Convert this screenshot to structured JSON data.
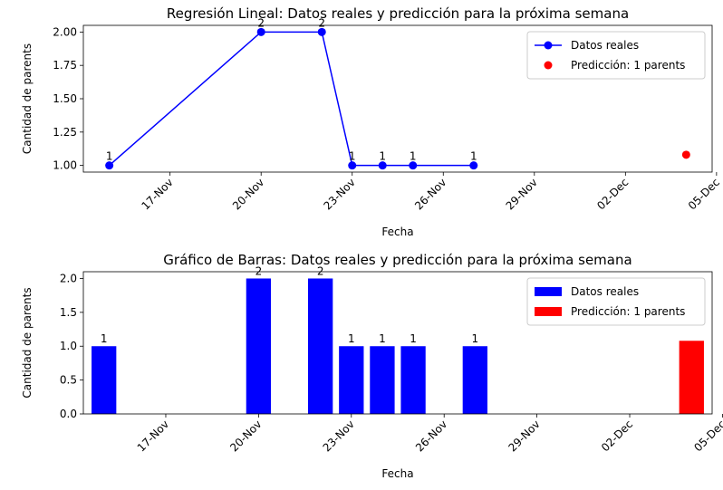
{
  "chart_data": [
    {
      "type": "line",
      "title": "Regresión Lineal: Datos reales y predicción para la próxima semana",
      "xlabel": "Fecha",
      "ylabel": "Cantidad de parents",
      "ylim": [
        0.95,
        2.05
      ],
      "yticks": [
        "1.00",
        "1.25",
        "1.50",
        "1.75",
        "2.00"
      ],
      "xticks": [
        "17-Nov",
        "20-Nov",
        "23-Nov",
        "26-Nov",
        "29-Nov",
        "02-Dec",
        "05-Dec"
      ],
      "legend_position": "top-right",
      "series": [
        {
          "name": "Datos reales",
          "color": "#0000ff",
          "marker": "circle",
          "points": [
            {
              "x": "2024-11-15",
              "y": 1,
              "label": "1"
            },
            {
              "x": "2024-11-20",
              "y": 2,
              "label": "2"
            },
            {
              "x": "2024-11-22",
              "y": 2,
              "label": "2"
            },
            {
              "x": "2024-11-23",
              "y": 1,
              "label": "1"
            },
            {
              "x": "2024-11-24",
              "y": 1,
              "label": "1"
            },
            {
              "x": "2024-11-25",
              "y": 1,
              "label": "1"
            },
            {
              "x": "2024-11-27",
              "y": 1,
              "label": "1"
            }
          ]
        },
        {
          "name": "Predicción: 1 parents",
          "color": "#ff0000",
          "marker": "circle",
          "points": [
            {
              "x": "2024-12-04",
              "y": 1.08
            }
          ]
        }
      ]
    },
    {
      "type": "bar",
      "title": "Gráfico de Barras: Datos reales y predicción para la próxima semana",
      "xlabel": "Fecha",
      "ylabel": "Cantidad de parents",
      "ylim": [
        0,
        2.1
      ],
      "yticks": [
        "0.0",
        "0.5",
        "1.0",
        "1.5",
        "2.0"
      ],
      "xticks": [
        "17-Nov",
        "20-Nov",
        "23-Nov",
        "26-Nov",
        "29-Nov",
        "02-Dec",
        "05-Dec"
      ],
      "legend_position": "top-right",
      "series": [
        {
          "name": "Datos reales",
          "color": "#0000ff",
          "points": [
            {
              "x": "2024-11-15",
              "y": 1,
              "label": "1"
            },
            {
              "x": "2024-11-20",
              "y": 2,
              "label": "2"
            },
            {
              "x": "2024-11-22",
              "y": 2,
              "label": "2"
            },
            {
              "x": "2024-11-23",
              "y": 1,
              "label": "1"
            },
            {
              "x": "2024-11-24",
              "y": 1,
              "label": "1"
            },
            {
              "x": "2024-11-25",
              "y": 1,
              "label": "1"
            },
            {
              "x": "2024-11-27",
              "y": 1,
              "label": "1"
            }
          ]
        },
        {
          "name": "Predicción: 1 parents",
          "color": "#ff0000",
          "points": [
            {
              "x": "2024-12-04",
              "y": 1.08
            }
          ]
        }
      ]
    }
  ]
}
